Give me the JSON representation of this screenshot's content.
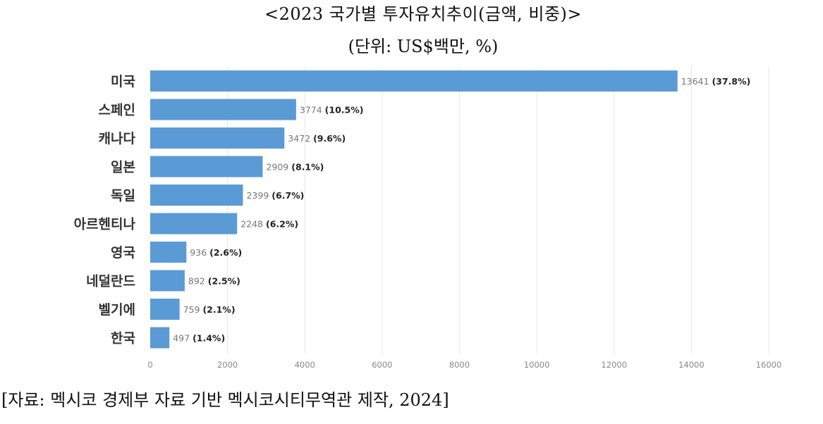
{
  "title": "<2023 국가별 투자유치추이(금액, 비중)>",
  "subtitle": "(단위: US$백만, %)",
  "source": "[자료: 멕시코 경제부 자료 기반 멕시코시티무역관 제작, 2024]",
  "colors": {
    "bar": "#5b9bd5",
    "grid": "#e6e6e6"
  },
  "chart_data": {
    "type": "bar",
    "orientation": "horizontal",
    "categories": [
      "미국",
      "스페인",
      "캐나다",
      "일본",
      "독일",
      "아르헨티나",
      "영국",
      "네덜란드",
      "벨기에",
      "한국"
    ],
    "values": [
      13641,
      3774,
      3472,
      2909,
      2399,
      2248,
      936,
      892,
      759,
      497
    ],
    "percent_labels": [
      "(37.8%)",
      "(10.5%)",
      "(9.6%)",
      "(8.1%)",
      "(6.7%)",
      "(6.2%)",
      "(2.6%)",
      "(2.5%)",
      "(2.1%)",
      "(1.4%)"
    ],
    "xlim": [
      0,
      16000
    ],
    "xticks": [
      0,
      2000,
      4000,
      6000,
      8000,
      10000,
      12000,
      14000,
      16000
    ],
    "grid": "vertical",
    "legend": "none"
  }
}
